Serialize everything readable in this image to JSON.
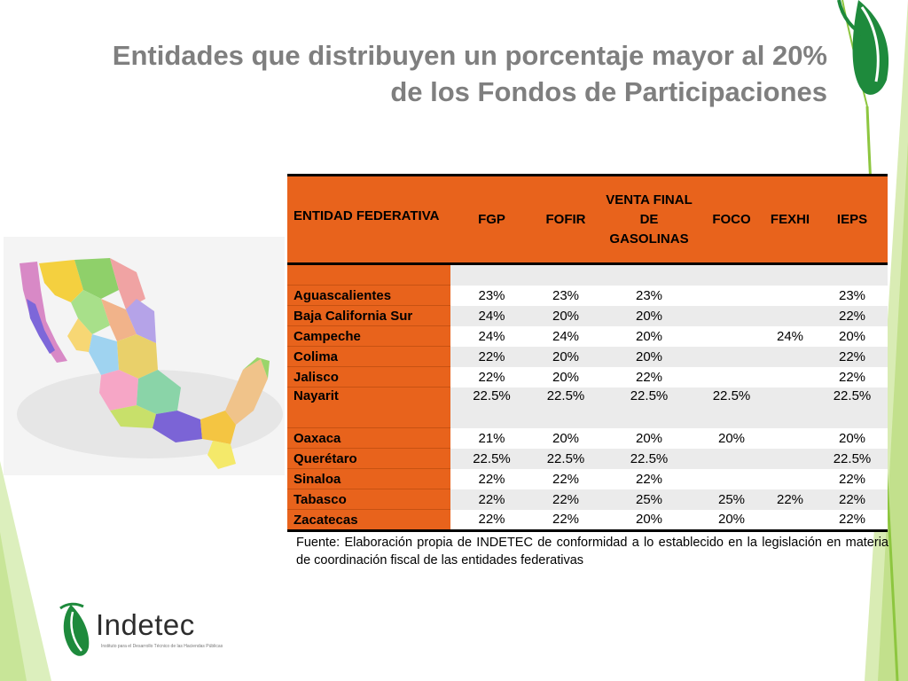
{
  "title": {
    "line1": "Entidades que distribuyen un porcentaje mayor al 20%",
    "line2": "de los Fondos de Participaciones"
  },
  "table": {
    "headers": {
      "entidad": "ENTIDAD FEDERATIVA",
      "fgp": "FGP",
      "fofir": "FOFIR",
      "venta": "VENTA FINAL DE GASOLINAS",
      "foco": "FOCO",
      "fexhi": "FEXHI",
      "ieps": "IEPS"
    },
    "rows": [
      {
        "entidad": "Aguascalientes",
        "fgp": "23%",
        "fofir": "23%",
        "venta": "23%",
        "foco": "",
        "fexhi": "",
        "ieps": "23%"
      },
      {
        "entidad": "Baja California Sur",
        "fgp": "24%",
        "fofir": "20%",
        "venta": "20%",
        "foco": "",
        "fexhi": "",
        "ieps": "22%"
      },
      {
        "entidad": "Campeche",
        "fgp": "24%",
        "fofir": "24%",
        "venta": "20%",
        "foco": "",
        "fexhi": "24%",
        "ieps": "20%"
      },
      {
        "entidad": "Colima",
        "fgp": "22%",
        "fofir": "20%",
        "venta": "20%",
        "foco": "",
        "fexhi": "",
        "ieps": "22%"
      },
      {
        "entidad": "Jalisco",
        "fgp": "22%",
        "fofir": "20%",
        "venta": "22%",
        "foco": "",
        "fexhi": "",
        "ieps": "22%"
      },
      {
        "entidad": "Nayarit",
        "fgp": "22.5%",
        "fofir": "22.5%",
        "venta": "22.5%",
        "foco": "22.5%",
        "fexhi": "",
        "ieps": "22.5%"
      },
      {
        "entidad": "Oaxaca",
        "fgp": "21%",
        "fofir": "20%",
        "venta": "20%",
        "foco": "20%",
        "fexhi": "",
        "ieps": "20%"
      },
      {
        "entidad": "Querétaro",
        "fgp": "22.5%",
        "fofir": "22.5%",
        "venta": "22.5%",
        "foco": "",
        "fexhi": "",
        "ieps": "22.5%"
      },
      {
        "entidad": "Sinaloa",
        "fgp": "22%",
        "fofir": "22%",
        "venta": "22%",
        "foco": "",
        "fexhi": "",
        "ieps": "22%"
      },
      {
        "entidad": "Tabasco",
        "fgp": "22%",
        "fofir": "22%",
        "venta": "25%",
        "foco": "25%",
        "fexhi": "22%",
        "ieps": "22%"
      },
      {
        "entidad": "Zacatecas",
        "fgp": "22%",
        "fofir": "22%",
        "venta": "20%",
        "foco": "20%",
        "fexhi": "",
        "ieps": "22%"
      }
    ]
  },
  "fuente": "Fuente: Elaboración propia de INDETEC de conformidad a lo establecido en la legislación en materia de coordinación fiscal de las entidades federativas",
  "logo": {
    "name": "Indetec",
    "subtitle": "Instituto para el Desarrollo Técnico de las Haciendas Públicas"
  },
  "colors": {
    "header_orange": "#e8631c",
    "title_gray": "#7f7f7f",
    "accent_green": "#8dc63f",
    "logo_green": "#1e8a3c"
  }
}
